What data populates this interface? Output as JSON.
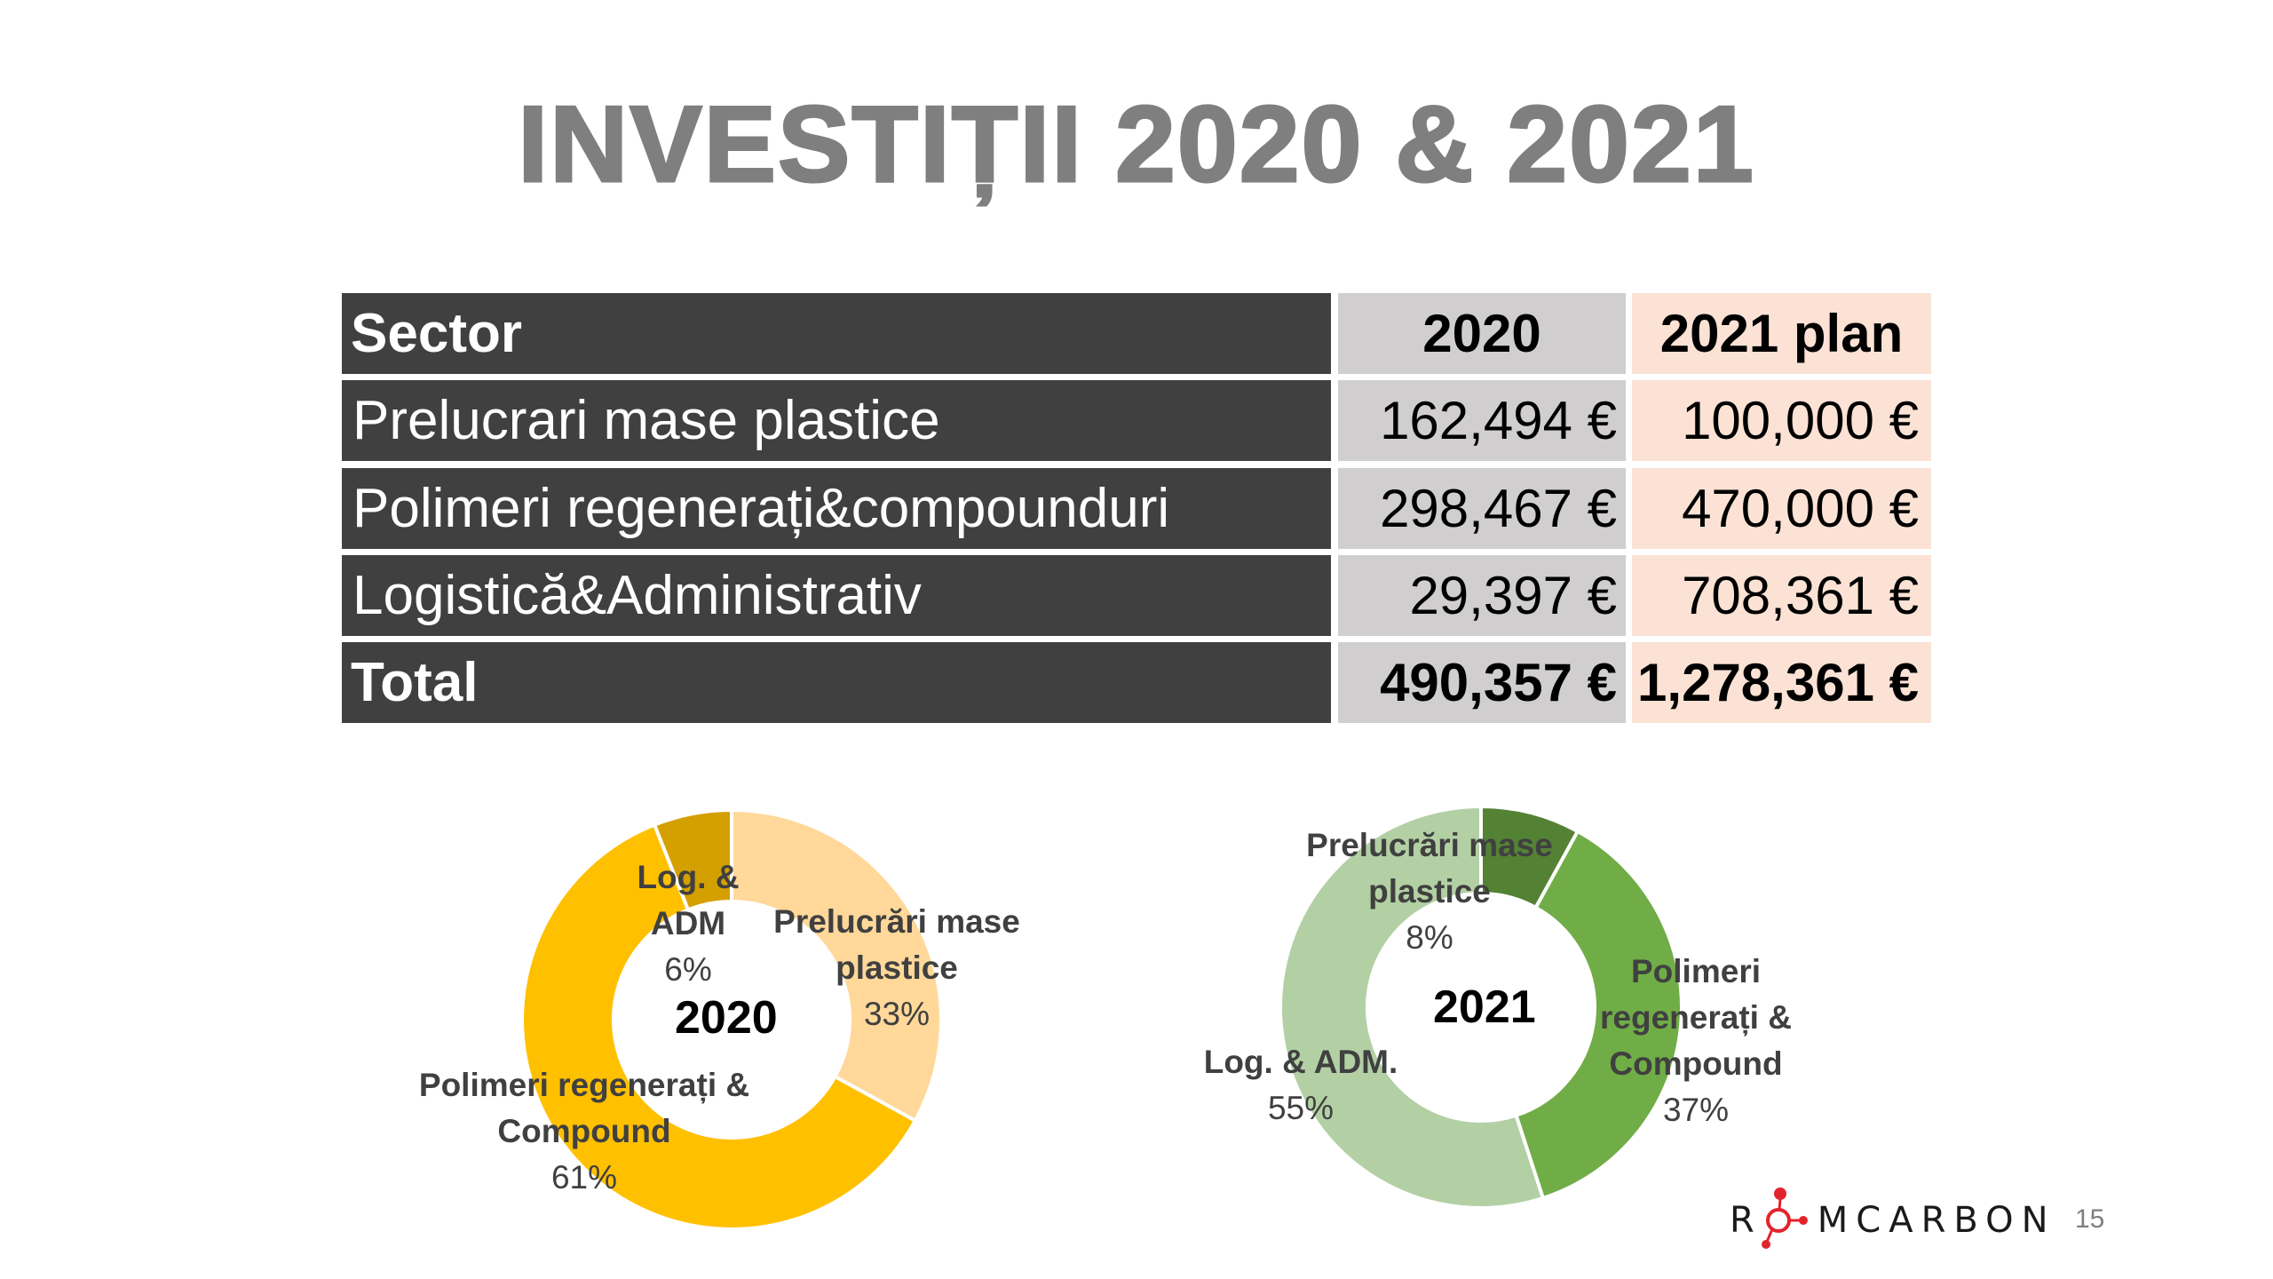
{
  "slide": {
    "title": "INVESTIȚII 2020 & 2021",
    "page_number": "15",
    "logo": {
      "text_left": "R",
      "text_right": "MCARBON",
      "accent_color": "#e3232b",
      "icon": "molecule-o-icon"
    }
  },
  "table": {
    "headers": {
      "sector": "Sector",
      "y2020": "2020",
      "y2021": "2021 plan"
    },
    "rows": [
      {
        "sector": "Prelucrari mase plastice",
        "y2020": "162,494 €",
        "y2021": "100,000 €"
      },
      {
        "sector": "Polimeri regenerați&compounduri",
        "y2020": "298,467 €",
        "y2021": "470,000 €"
      },
      {
        "sector": "Logistică&Administrativ",
        "y2020": "29,397 €",
        "y2021": "708,361 €"
      }
    ],
    "total": {
      "sector": "Total",
      "y2020": "490,357 €",
      "y2021": "1,278,361 €"
    },
    "colors": {
      "sector_bg": "#404040",
      "col2020_bg": "#d0cece",
      "col2021_bg": "#fbe2d5"
    }
  },
  "chart_data": [
    {
      "type": "pie",
      "variant": "donut",
      "title": "2020",
      "categories": [
        "Prelucrări mase plastice",
        "Polimeri regenerați & Compound",
        "Log. & ADM"
      ],
      "values": [
        33,
        61,
        6
      ],
      "value_unit": "%",
      "absolute_values_eur": [
        162494,
        298467,
        29397
      ],
      "colors": [
        "#ffd89a",
        "#ffc000",
        "#d4a000"
      ],
      "labels": [
        {
          "lines": [
            "Prelucrări mase",
            "plastice"
          ],
          "pct": "33%"
        },
        {
          "lines": [
            "Polimeri regenerați &",
            "Compound"
          ],
          "pct": "61%"
        },
        {
          "lines": [
            "Log. &",
            "ADM"
          ],
          "pct": "6%"
        }
      ],
      "legend": "none (data labels)"
    },
    {
      "type": "pie",
      "variant": "donut",
      "title": "2021",
      "categories": [
        "Prelucrări mase plastice",
        "Polimeri regenerați & Compound",
        "Log. & ADM."
      ],
      "values": [
        8,
        37,
        55
      ],
      "value_unit": "%",
      "absolute_values_eur": [
        100000,
        470000,
        708361
      ],
      "colors": [
        "#548235",
        "#70ad47",
        "#b3d0a4"
      ],
      "labels": [
        {
          "lines": [
            "Prelucrări mase",
            "plastice"
          ],
          "pct": "8%"
        },
        {
          "lines": [
            "Polimeri",
            "regenerați &",
            "Compound"
          ],
          "pct": "37%"
        },
        {
          "lines": [
            "Log. & ADM."
          ],
          "pct": "55%"
        }
      ],
      "legend": "none (data labels)"
    }
  ]
}
